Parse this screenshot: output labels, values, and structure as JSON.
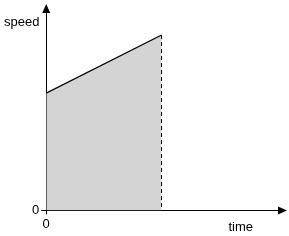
{
  "chart_data": {
    "type": "line",
    "x_label": "time",
    "y_label": "speed",
    "x": [
      0,
      113
    ],
    "values": [
      117,
      175
    ],
    "color": "#000000",
    "line_style": "solid",
    "xlim": [
      0,
      230
    ],
    "ylim": [
      0,
      200
    ],
    "xticks": [
      0
    ],
    "yticks": [
      0
    ],
    "grid": false
  }
}
